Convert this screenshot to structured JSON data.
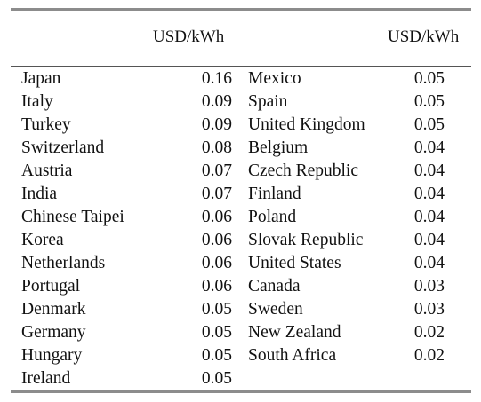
{
  "table": {
    "header_left": "USD/kWh",
    "header_right": "USD/kWh",
    "left_rows": [
      {
        "country": "Japan",
        "value": "0.16"
      },
      {
        "country": "Italy",
        "value": "0.09"
      },
      {
        "country": "Turkey",
        "value": "0.09"
      },
      {
        "country": "Switzerland",
        "value": "0.08"
      },
      {
        "country": "Austria",
        "value": "0.07"
      },
      {
        "country": "India",
        "value": "0.07"
      },
      {
        "country": "Chinese Taipei",
        "value": "0.06"
      },
      {
        "country": "Korea",
        "value": "0.06"
      },
      {
        "country": "Netherlands",
        "value": "0.06"
      },
      {
        "country": "Portugal",
        "value": "0.06"
      },
      {
        "country": "Denmark",
        "value": "0.05"
      },
      {
        "country": "Germany",
        "value": "0.05"
      },
      {
        "country": "Hungary",
        "value": "0.05"
      },
      {
        "country": "Ireland",
        "value": "0.05"
      }
    ],
    "right_rows": [
      {
        "country": "Mexico",
        "value": "0.05"
      },
      {
        "country": "Spain",
        "value": "0.05"
      },
      {
        "country": "United Kingdom",
        "value": "0.05"
      },
      {
        "country": "Belgium",
        "value": "0.04"
      },
      {
        "country": "Czech Republic",
        "value": "0.04"
      },
      {
        "country": "Finland",
        "value": "0.04"
      },
      {
        "country": "Poland",
        "value": "0.04"
      },
      {
        "country": "Slovak Republic",
        "value": "0.04"
      },
      {
        "country": "United States",
        "value": "0.04"
      },
      {
        "country": "Canada",
        "value": "0.03"
      },
      {
        "country": "Sweden",
        "value": "0.03"
      },
      {
        "country": "New Zealand",
        "value": "0.02"
      },
      {
        "country": "South Africa",
        "value": "0.02"
      }
    ]
  }
}
